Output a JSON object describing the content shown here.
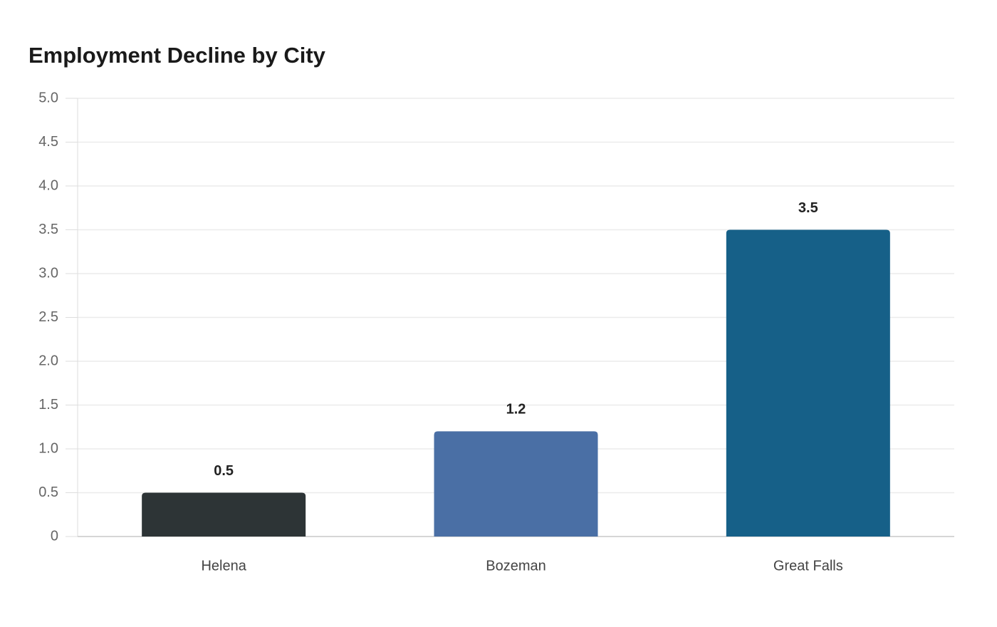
{
  "chart_data": {
    "type": "bar",
    "title": "Employment Decline by City",
    "categories": [
      "Helena",
      "Bozeman",
      "Great Falls"
    ],
    "values": [
      0.5,
      1.2,
      3.5
    ],
    "colors": [
      "#2d3436",
      "#4a6fa5",
      "#166088"
    ],
    "ylim": [
      0,
      5
    ],
    "yticks": [
      0,
      0.5,
      {
        "value": 1,
        "label": "1.0"
      },
      1.5,
      {
        "value": 2,
        "label": "2.0"
      },
      2.5,
      {
        "value": 3,
        "label": "3.0"
      },
      3.5,
      {
        "value": 4,
        "label": "4.0"
      },
      4.5,
      {
        "value": 5,
        "label": "5.0"
      }
    ],
    "grid": true
  }
}
